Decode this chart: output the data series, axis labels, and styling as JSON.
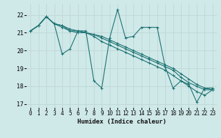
{
  "xlabel": "Humidex (Indice chaleur)",
  "background_color": "#cfe8e8",
  "grid_color": "#c0d8d8",
  "line_color": "#1a7070",
  "xlim": [
    -0.5,
    23.5
  ],
  "ylim": [
    16.8,
    22.6
  ],
  "yticks": [
    17,
    18,
    19,
    20,
    21,
    22
  ],
  "xticks": [
    0,
    1,
    2,
    3,
    4,
    5,
    6,
    7,
    8,
    9,
    10,
    11,
    12,
    13,
    14,
    15,
    16,
    17,
    18,
    19,
    20,
    21,
    22,
    23
  ],
  "series": [
    [
      21.1,
      21.4,
      21.9,
      21.5,
      19.8,
      20.1,
      21.1,
      21.1,
      18.3,
      17.9,
      20.7,
      22.3,
      20.7,
      20.8,
      21.3,
      21.3,
      21.3,
      19.1,
      17.9,
      18.3,
      18.1,
      17.1,
      17.9,
      17.9
    ],
    [
      21.1,
      21.4,
      21.9,
      21.5,
      21.4,
      21.1,
      21.1,
      21.0,
      20.9,
      20.7,
      20.5,
      20.3,
      20.1,
      19.9,
      19.7,
      19.5,
      19.3,
      19.1,
      18.9,
      18.5,
      18.2,
      18.0,
      17.8,
      17.8
    ],
    [
      21.1,
      21.4,
      21.9,
      21.5,
      21.3,
      21.1,
      21.0,
      21.0,
      20.8,
      20.5,
      20.3,
      20.1,
      19.9,
      19.7,
      19.5,
      19.3,
      19.1,
      18.9,
      18.6,
      18.3,
      18.0,
      17.7,
      17.5,
      17.8
    ],
    [
      21.1,
      21.4,
      21.9,
      21.5,
      21.4,
      21.2,
      21.1,
      21.0,
      20.9,
      20.8,
      20.6,
      20.4,
      20.2,
      20.0,
      19.8,
      19.6,
      19.4,
      19.2,
      19.0,
      18.7,
      18.4,
      18.1,
      17.9,
      17.8
    ]
  ],
  "tick_fontsize": 5.5,
  "xlabel_fontsize": 6.5
}
